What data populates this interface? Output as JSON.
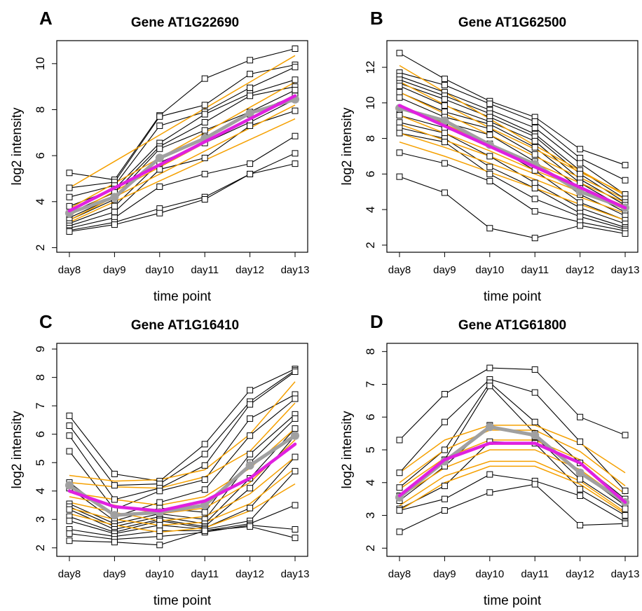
{
  "shared": {
    "xlabel": "time point",
    "ylabel": "log2 intensity",
    "categories": [
      "day8",
      "day9",
      "day10",
      "day11",
      "day12",
      "day13"
    ],
    "colors": {
      "individual": "#000000",
      "fitted": "#f5a000",
      "mean": "#a0a0a0",
      "model": "#e020e0"
    }
  },
  "chart_data": [
    {
      "type": "line",
      "panel": "A",
      "title": "Gene AT1G22690",
      "categories": [
        "day8",
        "day9",
        "day10",
        "day11",
        "day12",
        "day13"
      ],
      "ylim": [
        1.8,
        11
      ],
      "yticks": [
        2,
        4,
        6,
        8,
        10
      ],
      "individual_series": [
        [
          5.25,
          4.95,
          7.75,
          9.35,
          10.15,
          10.65
        ],
        [
          4.6,
          4.85,
          7.7,
          8.2,
          9.55,
          9.95
        ],
        [
          4.2,
          4.7,
          7.3,
          7.9,
          8.95,
          9.85
        ],
        [
          3.8,
          4.55,
          6.55,
          7.8,
          8.7,
          9.3
        ],
        [
          3.5,
          4.4,
          6.4,
          7.45,
          8.6,
          9.0
        ],
        [
          3.3,
          4.2,
          6.3,
          7.1,
          7.9,
          8.85
        ],
        [
          3.2,
          4.1,
          5.9,
          6.8,
          7.8,
          8.6
        ],
        [
          3.05,
          3.8,
          5.7,
          6.55,
          7.45,
          8.45
        ],
        [
          2.95,
          3.55,
          5.4,
          5.9,
          7.3,
          7.95
        ],
        [
          2.85,
          3.3,
          4.65,
          5.2,
          5.65,
          6.85
        ],
        [
          2.75,
          3.1,
          3.7,
          4.2,
          5.2,
          6.1
        ],
        [
          2.7,
          3.0,
          3.5,
          4.1,
          5.2,
          5.65
        ]
      ],
      "fitted_series": [
        [
          4.6,
          5.75,
          6.9,
          8.05,
          9.2,
          10.35
        ],
        [
          3.7,
          4.8,
          5.9,
          7.0,
          8.1,
          9.2
        ],
        [
          3.4,
          4.45,
          5.5,
          6.55,
          7.6,
          8.65
        ],
        [
          3.2,
          4.2,
          5.2,
          6.2,
          7.2,
          8.2
        ],
        [
          3.1,
          4.0,
          4.9,
          5.8,
          6.7,
          7.6
        ]
      ],
      "mean_series": [
        3.5,
        4.2,
        5.9,
        6.75,
        7.85,
        8.45
      ],
      "model_series": [
        3.6,
        4.6,
        5.6,
        6.6,
        7.6,
        8.6
      ]
    },
    {
      "type": "line",
      "panel": "B",
      "title": "Gene AT1G62500",
      "categories": [
        "day8",
        "day9",
        "day10",
        "day11",
        "day12",
        "day13"
      ],
      "ylim": [
        1.6,
        13.5
      ],
      "yticks": [
        2,
        4,
        6,
        8,
        10,
        12
      ],
      "individual_series": [
        [
          12.8,
          11.35,
          10.1,
          9.2,
          7.4,
          6.5
        ],
        [
          11.7,
          11.0,
          9.95,
          8.95,
          6.9,
          5.65
        ],
        [
          11.5,
          10.6,
          9.6,
          8.6,
          6.6,
          4.85
        ],
        [
          11.3,
          10.4,
          9.4,
          8.25,
          6.2,
          4.6
        ],
        [
          11.1,
          10.2,
          9.2,
          8.1,
          6.0,
          4.4
        ],
        [
          10.95,
          9.85,
          8.95,
          7.85,
          5.7,
          4.25
        ],
        [
          10.6,
          9.5,
          8.8,
          7.5,
          5.5,
          4.05
        ],
        [
          10.3,
          9.2,
          8.55,
          7.1,
          5.2,
          3.85
        ],
        [
          9.65,
          8.9,
          8.2,
          6.7,
          4.85,
          3.65
        ],
        [
          9.3,
          8.6,
          7.7,
          6.2,
          4.4,
          3.4
        ],
        [
          8.9,
          8.3,
          7.0,
          5.5,
          4.1,
          3.2
        ],
        [
          8.6,
          8.0,
          6.4,
          5.2,
          3.8,
          3.0
        ],
        [
          8.3,
          7.8,
          6.0,
          4.6,
          3.6,
          2.9
        ],
        [
          7.2,
          6.6,
          5.6,
          3.9,
          3.3,
          2.8
        ],
        [
          5.85,
          4.95,
          2.95,
          2.4,
          3.1,
          2.65
        ]
      ],
      "fitted_series": [
        [
          12.1,
          10.6,
          9.1,
          7.6,
          6.2,
          4.8
        ],
        [
          11.2,
          9.9,
          8.6,
          7.4,
          6.1,
          4.9
        ],
        [
          10.6,
          9.4,
          8.2,
          7.0,
          5.8,
          4.6
        ],
        [
          9.9,
          8.8,
          7.7,
          6.6,
          5.5,
          4.4
        ],
        [
          9.3,
          8.3,
          7.3,
          6.2,
          5.2,
          4.2
        ],
        [
          8.8,
          7.9,
          7.0,
          6.0,
          5.0,
          4.0
        ],
        [
          8.3,
          7.5,
          6.6,
          5.7,
          4.7,
          3.8
        ],
        [
          7.8,
          7.0,
          6.1,
          5.2,
          4.3,
          3.4
        ]
      ],
      "mean_series": [
        9.7,
        9.0,
        7.65,
        6.55,
        5.0,
        4.1
      ],
      "model_series": [
        9.85,
        8.7,
        7.55,
        6.4,
        5.25,
        4.1
      ]
    },
    {
      "type": "line",
      "panel": "C",
      "title": "Gene AT1G16410",
      "categories": [
        "day8",
        "day9",
        "day10",
        "day11",
        "day12",
        "day13"
      ],
      "ylim": [
        1.7,
        9.2
      ],
      "yticks": [
        2,
        3,
        4,
        5,
        6,
        7,
        8,
        9
      ],
      "individual_series": [
        [
          6.65,
          4.6,
          4.35,
          5.65,
          7.55,
          8.3
        ],
        [
          6.3,
          4.2,
          4.25,
          5.3,
          7.15,
          8.25
        ],
        [
          5.95,
          3.7,
          4.1,
          4.9,
          7.05,
          8.2
        ],
        [
          5.4,
          3.35,
          4.0,
          4.4,
          6.55,
          7.4
        ],
        [
          4.3,
          3.1,
          3.6,
          4.05,
          5.95,
          7.25
        ],
        [
          4.1,
          2.95,
          3.4,
          3.25,
          5.3,
          6.7
        ],
        [
          3.55,
          2.85,
          3.2,
          3.0,
          5.0,
          6.55
        ],
        [
          3.45,
          2.75,
          3.1,
          2.85,
          4.45,
          6.2
        ],
        [
          3.35,
          2.65,
          3.0,
          2.75,
          4.1,
          5.95
        ],
        [
          3.1,
          2.55,
          2.95,
          2.7,
          3.4,
          5.2
        ],
        [
          2.95,
          2.5,
          2.8,
          2.65,
          2.95,
          4.7
        ],
        [
          2.65,
          2.4,
          2.6,
          2.6,
          2.85,
          3.5
        ],
        [
          2.5,
          2.3,
          2.4,
          2.55,
          2.8,
          2.65
        ],
        [
          2.25,
          2.2,
          2.1,
          2.6,
          2.75,
          2.35
        ]
      ],
      "fitted_series": [
        [
          4.55,
          4.35,
          4.4,
          4.75,
          6.0,
          7.85
        ],
        [
          4.3,
          4.15,
          4.1,
          4.5,
          5.4,
          7.1
        ],
        [
          3.95,
          3.7,
          3.5,
          3.8,
          4.8,
          6.2
        ],
        [
          3.8,
          3.5,
          3.2,
          3.4,
          4.3,
          5.8
        ],
        [
          3.6,
          3.25,
          2.95,
          3.1,
          3.9,
          5.2
        ],
        [
          3.4,
          3.0,
          2.8,
          2.9,
          3.55,
          4.8
        ],
        [
          3.2,
          2.8,
          2.55,
          2.7,
          3.3,
          4.25
        ]
      ],
      "mean_series": [
        4.2,
        3.15,
        3.25,
        3.5,
        4.9,
        5.95
      ],
      "model_series": [
        4.0,
        3.45,
        3.3,
        3.65,
        4.45,
        5.65
      ]
    },
    {
      "type": "line",
      "panel": "D",
      "title": "Gene AT1G61800",
      "categories": [
        "day8",
        "day9",
        "day10",
        "day11",
        "day12",
        "day13"
      ],
      "ylim": [
        1.75,
        8.25
      ],
      "yticks": [
        2,
        3,
        4,
        5,
        6,
        7,
        8
      ],
      "individual_series": [
        [
          5.3,
          6.7,
          7.5,
          7.45,
          6.0,
          5.45
        ],
        [
          4.3,
          5.85,
          7.15,
          6.75,
          5.25,
          3.75
        ],
        [
          3.85,
          5.0,
          7.05,
          5.85,
          4.6,
          3.5
        ],
        [
          3.6,
          4.7,
          6.95,
          5.5,
          4.3,
          3.3
        ],
        [
          3.45,
          4.5,
          5.75,
          5.4,
          4.1,
          3.2
        ],
        [
          3.2,
          3.9,
          5.25,
          5.2,
          3.8,
          3.0
        ],
        [
          3.15,
          3.5,
          4.25,
          4.05,
          3.6,
          2.8
        ],
        [
          2.5,
          3.15,
          3.7,
          3.95,
          2.7,
          2.75
        ]
      ],
      "fitted_series": [
        [
          4.3,
          5.3,
          5.75,
          5.75,
          5.2,
          4.3
        ],
        [
          4.0,
          5.0,
          5.6,
          5.6,
          4.95,
          3.9
        ],
        [
          3.8,
          4.75,
          5.3,
          5.3,
          4.7,
          3.65
        ],
        [
          3.55,
          4.45,
          5.0,
          5.0,
          4.4,
          3.4
        ],
        [
          3.3,
          4.2,
          4.65,
          4.65,
          4.05,
          3.1
        ],
        [
          3.15,
          4.0,
          4.5,
          4.5,
          3.95,
          3.05
        ]
      ],
      "mean_series": [
        3.55,
        4.65,
        5.7,
        5.45,
        4.3,
        3.4
      ],
      "model_series": [
        3.6,
        4.7,
        5.2,
        5.2,
        4.6,
        3.4
      ]
    }
  ]
}
